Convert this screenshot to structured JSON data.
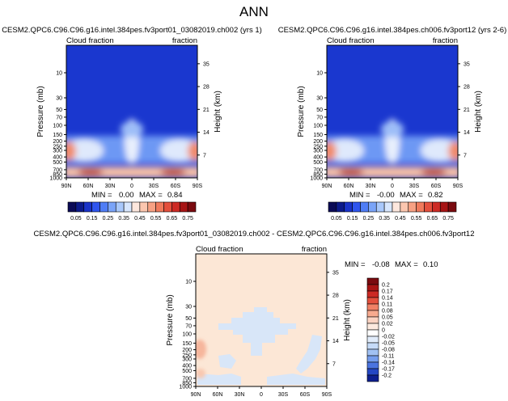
{
  "figure": {
    "title": "ANN"
  },
  "chart_data": [
    {
      "type": "heatmap",
      "title": "CESM2.QPC6.C96.C96.g16.intel.384pes.fv3port01_03082019.ch002 (yrs 1)",
      "left_label": "Cloud fraction",
      "right_label": "fraction",
      "ylabel": "Pressure (mb)",
      "y2label": "Height (km)",
      "x_ticks": [
        "90N",
        "60N",
        "30N",
        "0",
        "30S",
        "60S",
        "90S"
      ],
      "xlim": [
        90,
        -90
      ],
      "y_ticks": [
        "10",
        "30",
        "50",
        "70",
        "100",
        "150",
        "200",
        "250",
        "300",
        "400",
        "500",
        "700",
        "850",
        "1000"
      ],
      "y_tick_values": [
        10,
        30,
        50,
        70,
        100,
        150,
        200,
        250,
        300,
        400,
        500,
        700,
        850,
        1000
      ],
      "y2_ticks": [
        "35",
        "28",
        "21",
        "14",
        "7"
      ],
      "y2_tick_values": [
        35,
        28,
        21,
        14,
        7
      ],
      "ylim": [
        3,
        1000
      ],
      "y_scale": "log",
      "min_label": "MIN =",
      "min_value": "0.00",
      "max_label": "MAX =",
      "max_value": "0.84",
      "colorbar_ticks": [
        "0.05",
        "0.15",
        "0.25",
        "0.35",
        "0.45",
        "0.55",
        "0.65",
        "0.75"
      ]
    },
    {
      "type": "heatmap",
      "title": "CESM2.QPC6.C96.C96.g16.intel.384pes.ch006.fv3port12 (yrs 2-6)",
      "left_label": "Cloud fraction",
      "right_label": "fraction",
      "ylabel": "Pressure (mb)",
      "y2label": "Height (km)",
      "x_ticks": [
        "90N",
        "60N",
        "30N",
        "0",
        "30S",
        "60S",
        "90S"
      ],
      "xlim": [
        90,
        -90
      ],
      "y_ticks": [
        "10",
        "30",
        "50",
        "70",
        "100",
        "150",
        "200",
        "250",
        "300",
        "400",
        "500",
        "700",
        "850",
        "1000"
      ],
      "y_tick_values": [
        10,
        30,
        50,
        70,
        100,
        150,
        200,
        250,
        300,
        400,
        500,
        700,
        850,
        1000
      ],
      "y2_ticks": [
        "35",
        "28",
        "21",
        "14",
        "7"
      ],
      "y2_tick_values": [
        35,
        28,
        21,
        14,
        7
      ],
      "ylim": [
        3,
        1000
      ],
      "y_scale": "log",
      "min_label": "MIN =",
      "min_value": "-0.00",
      "max_label": "MAX =",
      "max_value": "0.82",
      "colorbar_ticks": [
        "0.05",
        "0.15",
        "0.25",
        "0.35",
        "0.45",
        "0.55",
        "0.65",
        "0.75"
      ]
    },
    {
      "type": "heatmap",
      "title": "CESM2.QPC6.C96.C96.g16.intel.384pes.fv3port01_03082019.ch002 - CESM2.QPC6.C96.C96.g16.intel.384pes.ch006.fv3port12",
      "left_label": "Cloud fraction",
      "right_label": "fraction",
      "ylabel": "Pressure (mb)",
      "y2label": "Height (km)",
      "x_ticks": [
        "90N",
        "60N",
        "30N",
        "0",
        "30S",
        "60S",
        "90S"
      ],
      "xlim": [
        90,
        -90
      ],
      "y_ticks": [
        "10",
        "30",
        "50",
        "70",
        "100",
        "150",
        "200",
        "250",
        "300",
        "400",
        "500",
        "700",
        "850",
        "1000"
      ],
      "y_tick_values": [
        10,
        30,
        50,
        70,
        100,
        150,
        200,
        250,
        300,
        400,
        500,
        700,
        850,
        1000
      ],
      "y2_ticks": [
        "35",
        "28",
        "21",
        "14",
        "7"
      ],
      "y2_tick_values": [
        35,
        28,
        21,
        14,
        7
      ],
      "ylim": [
        3,
        1000
      ],
      "y_scale": "log",
      "min_label": "MIN =",
      "min_value": "-0.08",
      "max_label": "MAX =",
      "max_value": "0.10",
      "colorbar_ticks": [
        "0.2",
        "0.17",
        "0.14",
        "0.11",
        "0.08",
        "0.05",
        "0.02",
        "0",
        "-0.02",
        "-0.05",
        "-0.08",
        "-0.11",
        "-0.14",
        "-0.17",
        "-0.2"
      ]
    }
  ],
  "colors": {
    "seq_colorbar": [
      "#0a0a55",
      "#0c1a8a",
      "#1a33c8",
      "#2f55ee",
      "#4f7df6",
      "#7aa4f8",
      "#a9c8fb",
      "#d7e6fd",
      "#fde7dd",
      "#fbc6af",
      "#f7a183",
      "#f07a5c",
      "#e44f3c",
      "#cd2a24",
      "#a71415",
      "#7a0a0f"
    ],
    "diff_colorbar": [
      "#7a0a0f",
      "#a81414",
      "#cc2a24",
      "#e3503d",
      "#f08166",
      "#f7aa8f",
      "#fbd3c2",
      "#fdeadf",
      "#ffffff",
      "#e1ecfb",
      "#c6dbf8",
      "#a1c1f3",
      "#759ded",
      "#4b74e0",
      "#2447c4",
      "#0d1f8f"
    ],
    "diff_background": "#fce7d6",
    "diff_negative": "#d8e6f8",
    "diff_positive": "#f6b69c"
  }
}
